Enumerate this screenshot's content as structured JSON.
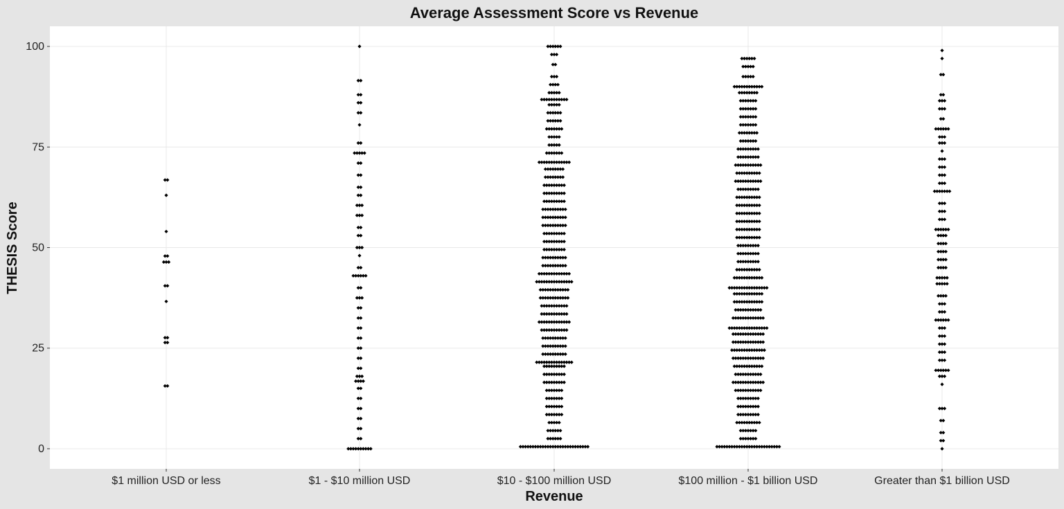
{
  "chart_data": {
    "type": "scatter",
    "title": "Average Assessment Score vs Revenue",
    "xlabel": "Revenue",
    "ylabel": "THESIS Score",
    "categories": [
      "$1 million USD or less",
      "$1 - $10 million USD",
      "$10 - $100 million USD",
      "$100 million - $1 billion USD",
      "Greater than $1 billion USD"
    ],
    "ylim": [
      -5,
      105
    ],
    "yticks": [
      0,
      25,
      50,
      75,
      100
    ],
    "grid": true,
    "legend": "none",
    "colors": {
      "point": "#000000",
      "panel": "#ffffff",
      "background": "#e5e5e5",
      "grid": "#e8e8e8"
    },
    "series_profile": [
      {
        "category": "$1 million USD or less",
        "bins": [
          [
            15.6,
            2
          ],
          [
            26.4,
            2
          ],
          [
            27.6,
            2
          ],
          [
            36.6,
            1
          ],
          [
            40.5,
            2
          ],
          [
            46.4,
            3
          ],
          [
            47.9,
            2
          ],
          [
            54.0,
            1
          ],
          [
            63.0,
            1
          ],
          [
            66.8,
            2
          ]
        ]
      },
      {
        "category": "$1 - $10 million USD",
        "bins": [
          [
            0,
            10
          ],
          [
            2.5,
            2
          ],
          [
            5,
            2
          ],
          [
            7.5,
            2
          ],
          [
            10,
            2
          ],
          [
            12.5,
            2
          ],
          [
            15,
            2
          ],
          [
            16.8,
            4
          ],
          [
            18,
            3
          ],
          [
            20,
            2
          ],
          [
            22.5,
            2
          ],
          [
            25,
            2
          ],
          [
            27.5,
            2
          ],
          [
            30,
            2
          ],
          [
            32.5,
            2
          ],
          [
            35,
            2
          ],
          [
            37.5,
            3
          ],
          [
            40,
            2
          ],
          [
            43,
            6
          ],
          [
            45,
            2
          ],
          [
            48,
            1
          ],
          [
            50,
            3
          ],
          [
            53,
            2
          ],
          [
            55,
            2
          ],
          [
            58,
            3
          ],
          [
            60.5,
            3
          ],
          [
            63,
            2
          ],
          [
            65,
            2
          ],
          [
            68,
            2
          ],
          [
            71,
            2
          ],
          [
            73.5,
            5
          ],
          [
            76,
            2
          ],
          [
            80.5,
            1
          ],
          [
            83.5,
            2
          ],
          [
            86,
            2
          ],
          [
            88,
            2
          ],
          [
            91.5,
            2
          ],
          [
            100,
            1
          ]
        ]
      },
      {
        "category": "$10 - $100 million USD",
        "bins": [
          [
            0.5,
            28
          ],
          [
            2.5,
            6
          ],
          [
            4.5,
            6
          ],
          [
            6.5,
            5
          ],
          [
            8.5,
            7
          ],
          [
            10.5,
            7
          ],
          [
            12.5,
            7
          ],
          [
            14.5,
            7
          ],
          [
            16.5,
            9
          ],
          [
            18.5,
            9
          ],
          [
            20.5,
            9
          ],
          [
            21.5,
            15
          ],
          [
            23.5,
            10
          ],
          [
            25.5,
            10
          ],
          [
            27.5,
            10
          ],
          [
            29.5,
            11
          ],
          [
            31.5,
            13
          ],
          [
            33.5,
            11
          ],
          [
            35.5,
            11
          ],
          [
            37.5,
            12
          ],
          [
            39.5,
            12
          ],
          [
            41.5,
            15
          ],
          [
            43.5,
            13
          ],
          [
            45.5,
            10
          ],
          [
            47.5,
            10
          ],
          [
            49.5,
            9
          ],
          [
            51.5,
            9
          ],
          [
            53.5,
            9
          ],
          [
            55.5,
            10
          ],
          [
            57.5,
            10
          ],
          [
            59.5,
            10
          ],
          [
            61.5,
            9
          ],
          [
            63.5,
            9
          ],
          [
            65.5,
            9
          ],
          [
            67.5,
            8
          ],
          [
            69.5,
            8
          ],
          [
            71.2,
            13
          ],
          [
            73.5,
            7
          ],
          [
            75.5,
            5
          ],
          [
            77.5,
            5
          ],
          [
            79.5,
            7
          ],
          [
            81.5,
            6
          ],
          [
            83.5,
            6
          ],
          [
            85.5,
            5
          ],
          [
            86.8,
            11
          ],
          [
            88.5,
            5
          ],
          [
            90.5,
            4
          ],
          [
            92.5,
            3
          ],
          [
            95.5,
            2
          ],
          [
            98,
            3
          ],
          [
            100,
            6
          ]
        ]
      },
      {
        "category": "$100 million - $1 billion USD",
        "bins": [
          [
            0.5,
            26
          ],
          [
            2.5,
            7
          ],
          [
            4.5,
            7
          ],
          [
            6.5,
            10
          ],
          [
            8.5,
            9
          ],
          [
            10.5,
            9
          ],
          [
            12.5,
            9
          ],
          [
            14.5,
            11
          ],
          [
            16.5,
            13
          ],
          [
            18.5,
            11
          ],
          [
            20.5,
            12
          ],
          [
            22.5,
            13
          ],
          [
            24.5,
            14
          ],
          [
            26.5,
            13
          ],
          [
            28.5,
            13
          ],
          [
            30,
            16
          ],
          [
            32.5,
            13
          ],
          [
            34.5,
            11
          ],
          [
            36.5,
            12
          ],
          [
            38.5,
            12
          ],
          [
            40,
            16
          ],
          [
            42.5,
            12
          ],
          [
            44.5,
            10
          ],
          [
            46.5,
            9
          ],
          [
            48.5,
            9
          ],
          [
            50.5,
            9
          ],
          [
            52.5,
            10
          ],
          [
            54.5,
            10
          ],
          [
            56.5,
            10
          ],
          [
            58.5,
            10
          ],
          [
            60.5,
            10
          ],
          [
            62.5,
            10
          ],
          [
            64.5,
            9
          ],
          [
            66.5,
            11
          ],
          [
            68.5,
            10
          ],
          [
            70.5,
            11
          ],
          [
            72.5,
            9
          ],
          [
            74.5,
            9
          ],
          [
            76.5,
            7
          ],
          [
            78.5,
            8
          ],
          [
            80.5,
            7
          ],
          [
            82.5,
            7
          ],
          [
            84.5,
            7
          ],
          [
            86.5,
            7
          ],
          [
            88.5,
            8
          ],
          [
            90,
            12
          ],
          [
            92.5,
            5
          ],
          [
            95,
            5
          ],
          [
            97,
            6
          ]
        ]
      },
      {
        "category": "Greater than $1 billion USD",
        "bins": [
          [
            0,
            1
          ],
          [
            2,
            2
          ],
          [
            4,
            2
          ],
          [
            7,
            2
          ],
          [
            10,
            3
          ],
          [
            16,
            1
          ],
          [
            18,
            3
          ],
          [
            19.5,
            6
          ],
          [
            22,
            3
          ],
          [
            24,
            3
          ],
          [
            26,
            3
          ],
          [
            28,
            3
          ],
          [
            30,
            3
          ],
          [
            32,
            6
          ],
          [
            34,
            3
          ],
          [
            36,
            3
          ],
          [
            38,
            4
          ],
          [
            41,
            5
          ],
          [
            42.5,
            5
          ],
          [
            45,
            4
          ],
          [
            47,
            4
          ],
          [
            49,
            4
          ],
          [
            51,
            4
          ],
          [
            53,
            4
          ],
          [
            54.5,
            6
          ],
          [
            57,
            3
          ],
          [
            59,
            3
          ],
          [
            61,
            3
          ],
          [
            64,
            7
          ],
          [
            66,
            3
          ],
          [
            68,
            3
          ],
          [
            70,
            3
          ],
          [
            72,
            3
          ],
          [
            74,
            1
          ],
          [
            76,
            3
          ],
          [
            77.5,
            3
          ],
          [
            79.5,
            6
          ],
          [
            82,
            2
          ],
          [
            84.5,
            3
          ],
          [
            86.5,
            3
          ],
          [
            88,
            2
          ],
          [
            93,
            2
          ],
          [
            97,
            1
          ],
          [
            99,
            1
          ]
        ]
      }
    ]
  }
}
